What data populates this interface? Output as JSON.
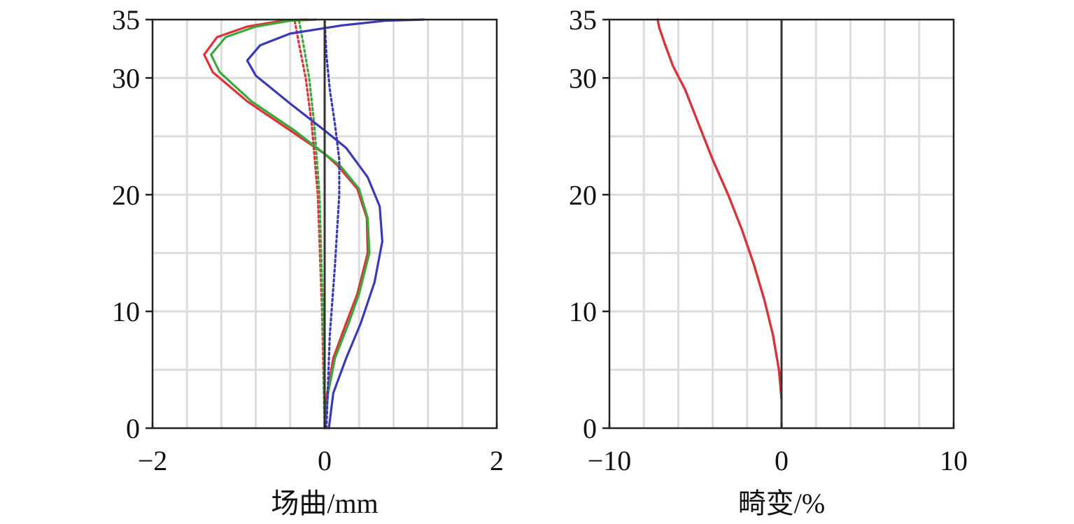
{
  "chart_data": [
    {
      "type": "line",
      "title": "",
      "xlabel": "场曲/mm",
      "ylabel": "",
      "xlim": [
        -2,
        2
      ],
      "ylim": [
        0,
        35
      ],
      "xticks": [
        -2,
        0,
        2
      ],
      "yticks": [
        0,
        10,
        20,
        30,
        35
      ],
      "xtick_labels": [
        "−2",
        "0",
        "2"
      ],
      "ytick_labels": [
        "0",
        "10",
        "20",
        "30",
        "35"
      ],
      "grid": true,
      "grid_step": {
        "x": 0.4,
        "y": 5
      },
      "series": [
        {
          "color": "#e0303a",
          "style": "solid",
          "points": [
            [
              0.0,
              0
            ],
            [
              0.03,
              3
            ],
            [
              0.1,
              6
            ],
            [
              0.25,
              9
            ],
            [
              0.38,
              11.5
            ],
            [
              0.5,
              15
            ],
            [
              0.49,
              18
            ],
            [
              0.38,
              20.5
            ],
            [
              0.15,
              22.5
            ],
            [
              0.0,
              23.5
            ],
            [
              -0.4,
              25.5
            ],
            [
              -0.9,
              28
            ],
            [
              -1.3,
              30.5
            ],
            [
              -1.4,
              32
            ],
            [
              -1.25,
              33.5
            ],
            [
              -0.9,
              34.4
            ],
            [
              -0.5,
              34.9
            ],
            [
              -0.2,
              35
            ]
          ]
        },
        {
          "color": "#e0303a",
          "style": "dotted",
          "points": [
            [
              0.0,
              0
            ],
            [
              -0.03,
              10
            ],
            [
              -0.08,
              20
            ],
            [
              -0.15,
              26
            ],
            [
              -0.22,
              30
            ],
            [
              -0.3,
              33
            ],
            [
              -0.35,
              35
            ]
          ]
        },
        {
          "color": "#3aa83a",
          "style": "solid",
          "points": [
            [
              0.0,
              0
            ],
            [
              0.04,
              3
            ],
            [
              0.12,
              6
            ],
            [
              0.28,
              9
            ],
            [
              0.4,
              11.5
            ],
            [
              0.52,
              15
            ],
            [
              0.5,
              18
            ],
            [
              0.4,
              20.5
            ],
            [
              0.18,
              22.5
            ],
            [
              0.0,
              23.5
            ],
            [
              -0.35,
              25.5
            ],
            [
              -0.85,
              28
            ],
            [
              -1.22,
              30.5
            ],
            [
              -1.32,
              32
            ],
            [
              -1.15,
              33.5
            ],
            [
              -0.8,
              34.4
            ],
            [
              -0.4,
              34.9
            ],
            [
              -0.1,
              35
            ]
          ]
        },
        {
          "color": "#3aa83a",
          "style": "dotted",
          "points": [
            [
              0.0,
              0
            ],
            [
              -0.02,
              10
            ],
            [
              -0.06,
              20
            ],
            [
              -0.12,
              26
            ],
            [
              -0.18,
              30
            ],
            [
              -0.25,
              33
            ],
            [
              -0.3,
              35
            ]
          ]
        },
        {
          "color": "#3a3ab8",
          "style": "solid",
          "points": [
            [
              0.05,
              0
            ],
            [
              0.1,
              3
            ],
            [
              0.25,
              6
            ],
            [
              0.42,
              9
            ],
            [
              0.58,
              12.5
            ],
            [
              0.67,
              16
            ],
            [
              0.64,
              19
            ],
            [
              0.5,
              21.5
            ],
            [
              0.25,
              24
            ],
            [
              0.0,
              25.5
            ],
            [
              -0.4,
              27.8
            ],
            [
              -0.8,
              30.2
            ],
            [
              -0.9,
              31.5
            ],
            [
              -0.75,
              32.8
            ],
            [
              -0.4,
              33.8
            ],
            [
              0.2,
              34.5
            ],
            [
              0.7,
              34.9
            ],
            [
              1.15,
              35
            ]
          ]
        },
        {
          "color": "#3a3ab8",
          "style": "dotted",
          "points": [
            [
              0.02,
              0
            ],
            [
              0.06,
              8
            ],
            [
              0.12,
              14
            ],
            [
              0.17,
              20
            ],
            [
              0.17,
              23
            ],
            [
              0.12,
              26
            ],
            [
              0.06,
              29
            ],
            [
              0.02,
              32
            ],
            [
              0.0,
              35
            ]
          ]
        }
      ]
    },
    {
      "type": "line",
      "title": "",
      "xlabel": "畸变/%",
      "ylabel": "",
      "xlim": [
        -10,
        10
      ],
      "ylim": [
        0,
        35
      ],
      "xticks": [
        -10,
        0,
        10
      ],
      "yticks": [
        0,
        10,
        20,
        30,
        35
      ],
      "xtick_labels": [
        "−10",
        "0",
        "10"
      ],
      "ytick_labels": [
        "0",
        "10",
        "20",
        "30",
        "35"
      ],
      "grid": true,
      "grid_step": {
        "x": 2,
        "y": 5
      },
      "series": [
        {
          "color": "#3a3ab8",
          "style": "solid",
          "points": [
            [
              0.0,
              2.5
            ],
            [
              -0.15,
              5
            ],
            [
              -0.5,
              8
            ],
            [
              -1.0,
              11
            ],
            [
              -1.6,
              14
            ],
            [
              -2.3,
              17
            ],
            [
              -3.1,
              20
            ],
            [
              -4.0,
              23
            ],
            [
              -4.8,
              26
            ],
            [
              -5.6,
              29
            ],
            [
              -6.3,
              31
            ],
            [
              -6.8,
              33
            ],
            [
              -7.1,
              34.3
            ],
            [
              -7.2,
              35
            ]
          ]
        },
        {
          "color": "#3aa83a",
          "style": "solid",
          "points": [
            [
              0.0,
              2.5
            ],
            [
              -0.15,
              5
            ],
            [
              -0.5,
              8
            ],
            [
              -1.0,
              11
            ],
            [
              -1.6,
              14
            ],
            [
              -2.3,
              17
            ],
            [
              -3.1,
              20
            ],
            [
              -4.0,
              23
            ],
            [
              -4.8,
              26
            ],
            [
              -5.6,
              29
            ],
            [
              -6.3,
              31
            ],
            [
              -6.8,
              33
            ],
            [
              -7.1,
              34.3
            ],
            [
              -7.2,
              35
            ]
          ]
        },
        {
          "color": "#e0303a",
          "style": "solid",
          "points": [
            [
              0.0,
              2.5
            ],
            [
              -0.15,
              5
            ],
            [
              -0.5,
              8
            ],
            [
              -1.0,
              11
            ],
            [
              -1.6,
              14
            ],
            [
              -2.3,
              17
            ],
            [
              -3.1,
              20
            ],
            [
              -4.0,
              23
            ],
            [
              -4.8,
              26
            ],
            [
              -5.6,
              29
            ],
            [
              -6.3,
              31
            ],
            [
              -6.8,
              33
            ],
            [
              -7.1,
              34.3
            ],
            [
              -7.2,
              35
            ]
          ]
        }
      ]
    }
  ]
}
